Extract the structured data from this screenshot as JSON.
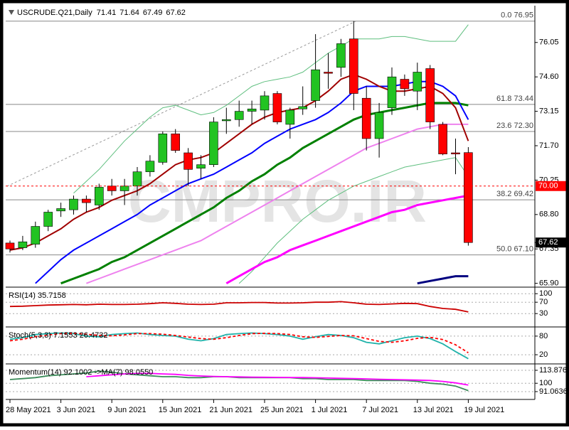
{
  "chart_data": {
    "type": "candlestick",
    "title": "USCRUDE.Q21,Daily",
    "header_values": [
      71.41,
      71.64,
      67.49,
      67.62
    ],
    "watermark": "CMPRO.IR",
    "categories": [
      "28 May 2021",
      null,
      null,
      null,
      "3 Jun 2021",
      null,
      null,
      null,
      "9 Jun 2021",
      null,
      null,
      null,
      "15 Jun 2021",
      null,
      null,
      null,
      "21 Jun 2021",
      null,
      null,
      null,
      "25 Jun 2021",
      null,
      null,
      null,
      "1 Jul 2021",
      null,
      null,
      null,
      "7 Jul 2021",
      null,
      null,
      null,
      "13 Jul 2021",
      null,
      null,
      null,
      "19 Jul 2021"
    ],
    "open": [
      67.6,
      67.4,
      67.55,
      68.3,
      68.95,
      69.0,
      69.45,
      69.2,
      70.0,
      69.8,
      70.0,
      70.6,
      71.0,
      72.2,
      71.4,
      70.75,
      70.9,
      72.75,
      72.8,
      73.15,
      73.2,
      73.9,
      72.6,
      73.25,
      73.6,
      74.8,
      75.0,
      76.2,
      73.7,
      72.0,
      73.3,
      74.5,
      74.0,
      74.95,
      72.6,
      71.4,
      71.41
    ],
    "high": [
      67.7,
      67.9,
      68.5,
      69.0,
      69.3,
      69.6,
      69.6,
      70.1,
      70.3,
      70.3,
      70.8,
      71.3,
      72.3,
      72.4,
      71.6,
      71.3,
      72.9,
      73.3,
      73.6,
      73.6,
      74.0,
      74.0,
      73.3,
      74.2,
      76.4,
      75.6,
      76.2,
      76.95,
      74.2,
      73.5,
      75.0,
      74.7,
      75.2,
      75.1,
      72.7,
      72.0,
      71.64
    ],
    "low": [
      67.2,
      67.3,
      67.4,
      68.1,
      68.7,
      68.8,
      68.9,
      69.0,
      69.6,
      69.2,
      69.6,
      70.4,
      70.9,
      71.4,
      70.0,
      70.3,
      70.8,
      72.2,
      72.5,
      72.6,
      72.8,
      72.6,
      72.0,
      73.0,
      73.3,
      74.1,
      74.6,
      73.2,
      71.5,
      71.2,
      73.0,
      73.8,
      73.2,
      72.4,
      71.3,
      70.5,
      67.49
    ],
    "close": [
      67.35,
      67.65,
      68.3,
      68.9,
      69.05,
      69.45,
      69.3,
      69.95,
      69.8,
      70.0,
      70.6,
      71.05,
      72.2,
      71.5,
      70.7,
      70.9,
      72.7,
      72.8,
      73.15,
      73.25,
      73.8,
      72.7,
      73.2,
      73.35,
      74.9,
      74.75,
      76.0,
      73.9,
      72.0,
      73.1,
      74.6,
      74.1,
      74.8,
      72.7,
      71.35,
      71.35,
      67.62
    ],
    "up_color": "#22c322",
    "down_color": "#ff0000",
    "overlays": [
      {
        "color": "#5fbf7f",
        "width": 1,
        "values": [
          null,
          null,
          null,
          null,
          null,
          69.7,
          70.2,
          70.7,
          71.3,
          71.9,
          72.4,
          72.9,
          73.3,
          73.4,
          73.2,
          73.0,
          73.1,
          73.4,
          73.8,
          74.2,
          74.4,
          74.5,
          74.6,
          74.8,
          75.2,
          75.6,
          75.9,
          76.2,
          76.2,
          76.2,
          76.3,
          76.3,
          76.2,
          76.1,
          76.1,
          76.1,
          76.8
        ]
      },
      {
        "color": "#5fbf7f",
        "width": 1,
        "values": [
          null,
          null,
          null,
          null,
          null,
          null,
          null,
          null,
          null,
          null,
          null,
          null,
          null,
          null,
          null,
          null,
          null,
          null,
          65.9,
          66.4,
          67.0,
          67.6,
          68.1,
          68.6,
          69.0,
          69.4,
          69.7,
          70.0,
          70.2,
          70.4,
          70.6,
          70.8,
          70.9,
          71.0,
          71.1,
          71.2,
          70.4
        ]
      },
      {
        "color": "#ee82ee",
        "width": 2,
        "values": [
          null,
          null,
          null,
          null,
          null,
          null,
          65.9,
          66.1,
          66.3,
          66.5,
          66.7,
          66.9,
          67.1,
          67.3,
          67.5,
          67.7,
          68.0,
          68.3,
          68.6,
          68.9,
          69.2,
          69.5,
          69.8,
          70.1,
          70.4,
          70.7,
          71.0,
          71.3,
          71.6,
          71.8,
          72.0,
          72.2,
          72.4,
          72.5,
          72.6,
          72.6,
          72.6
        ]
      },
      {
        "color": "#ff00ff",
        "width": 3,
        "values": [
          null,
          null,
          null,
          null,
          null,
          null,
          null,
          null,
          null,
          null,
          null,
          null,
          null,
          null,
          null,
          null,
          null,
          65.9,
          66.2,
          66.5,
          66.8,
          67.0,
          67.3,
          67.5,
          67.7,
          67.9,
          68.1,
          68.3,
          68.5,
          68.7,
          68.9,
          69.0,
          69.2,
          69.3,
          69.4,
          69.5,
          69.6
        ]
      },
      {
        "color": "#008000",
        "width": 3,
        "values": [
          null,
          null,
          null,
          null,
          65.9,
          66.1,
          66.3,
          66.5,
          66.8,
          67.0,
          67.3,
          67.6,
          67.9,
          68.2,
          68.5,
          68.8,
          69.1,
          69.5,
          69.8,
          70.2,
          70.5,
          70.9,
          71.2,
          71.6,
          71.9,
          72.2,
          72.5,
          72.8,
          73.0,
          73.1,
          73.2,
          73.3,
          73.4,
          73.5,
          73.5,
          73.5,
          73.4
        ]
      },
      {
        "color": "#0000ff",
        "width": 2,
        "values": [
          null,
          null,
          65.9,
          66.4,
          66.9,
          67.3,
          67.6,
          67.9,
          68.2,
          68.5,
          68.8,
          69.2,
          69.5,
          69.8,
          70.1,
          70.3,
          70.5,
          70.8,
          71.1,
          71.4,
          71.8,
          72.1,
          72.4,
          72.6,
          72.8,
          73.1,
          73.5,
          74.0,
          74.2,
          74.2,
          74.2,
          74.3,
          74.4,
          74.4,
          74.2,
          73.8,
          72.8
        ]
      },
      {
        "color": "#a00000",
        "width": 2,
        "values": [
          67.3,
          67.4,
          67.6,
          67.9,
          68.2,
          68.6,
          68.9,
          69.1,
          69.4,
          69.6,
          69.8,
          70.1,
          70.5,
          70.9,
          71.1,
          71.2,
          71.4,
          71.8,
          72.2,
          72.6,
          72.9,
          73.1,
          73.2,
          73.3,
          73.6,
          74.0,
          74.5,
          74.7,
          74.5,
          74.2,
          74.0,
          74.0,
          74.1,
          74.2,
          73.9,
          73.3,
          71.9
        ]
      },
      {
        "color": "#000080",
        "width": 3,
        "values": [
          null,
          null,
          null,
          null,
          null,
          null,
          null,
          null,
          null,
          null,
          null,
          null,
          null,
          null,
          null,
          null,
          null,
          null,
          null,
          null,
          null,
          null,
          null,
          null,
          null,
          null,
          null,
          null,
          null,
          null,
          null,
          null,
          65.9,
          66.0,
          66.1,
          66.2,
          66.2
        ]
      }
    ],
    "levels": [
      {
        "label": "0.0 76.95",
        "value": 76.95
      },
      {
        "label": "61.8 73.44",
        "value": 73.44
      },
      {
        "label": "23.6 72.30",
        "value": 72.3
      },
      {
        "label": "38.2 69.42",
        "value": 69.42
      },
      {
        "label": "50.0 67.10",
        "value": 67.1
      }
    ],
    "price_markers": [
      {
        "value": 70,
        "label": "70.00",
        "color": "#ff0000",
        "dashed": true
      },
      {
        "value": 67.62,
        "label": "67.62",
        "color": "#000000",
        "dashed": false
      }
    ],
    "ylim": [
      65.8,
      77.6
    ],
    "yticks": [
      76.05,
      {
        "value": 74.6,
        "label": "74.60"
      },
      73.15,
      {
        "value": 71.7,
        "label": "71.70"
      },
      70.25,
      {
        "value": 68.8,
        "label": "68.80"
      },
      67.35,
      {
        "value": 65.9,
        "label": "65.90"
      }
    ],
    "indicators": [
      {
        "title": "RSI(14) 35.7158",
        "ylim": [
          -12,
          118
        ],
        "yticks": [
          100,
          70,
          30
        ],
        "series": [
          {
            "color": "#cc0000",
            "dash": false,
            "values": [
              55,
              56,
              58,
              60,
              61,
              62,
              61,
              63,
              62,
              62,
              63,
              65,
              68,
              66,
              63,
              62,
              63,
              68,
              68,
              69,
              69,
              67,
              67,
              68,
              70,
              70,
              72,
              68,
              63,
              62,
              64,
              66,
              65,
              55,
              48,
              45,
              35.7158
            ]
          }
        ]
      },
      {
        "title": "Stoch(5,3,3) 7.1553 26.4732",
        "ylim": [
          -5,
          105
        ],
        "yticks": [
          80,
          20
        ],
        "series": [
          {
            "color": "#20b2aa",
            "dash": false,
            "values": [
              70,
              75,
              85,
              88,
              90,
              88,
              80,
              78,
              85,
              88,
              90,
              85,
              82,
              80,
              70,
              65,
              72,
              85,
              88,
              90,
              88,
              85,
              80,
              70,
              78,
              85,
              82,
              75,
              60,
              55,
              65,
              75,
              80,
              72,
              55,
              30,
              7.1553
            ]
          },
          {
            "color": "#ff0000",
            "dash": true,
            "values": [
              65,
              70,
              78,
              84,
              88,
              89,
              86,
              82,
              81,
              84,
              88,
              88,
              86,
              82,
              77,
              72,
              70,
              75,
              82,
              88,
              89,
              88,
              85,
              78,
              76,
              79,
              82,
              81,
              72,
              63,
              60,
              65,
              73,
              76,
              69,
              52,
              26.4732
            ]
          }
        ]
      },
      {
        "title": "Momentum(14) 92.1002 ->MA(7) 98.0550",
        "ylim": [
          84.2,
          119.2
        ],
        "yticks": [
          113.876,
          100,
          91.0636
        ],
        "series": [
          {
            "color": "#3c8c5a",
            "dash": false,
            "values": [
              104,
              105,
              106,
              108,
              109,
              110,
              111,
              113,
              112,
              110,
              109,
              108,
              107,
              107,
              106,
              106,
              107,
              107,
              106,
              106,
              106,
              106,
              106,
              105,
              105,
              104,
              104,
              104,
              103,
              103,
              103,
              103,
              102,
              100,
              99,
              97,
              92.1002
            ]
          },
          {
            "color": "#ff00ff",
            "dash": false,
            "values": [
              null,
              null,
              null,
              null,
              null,
              null,
              107,
              108,
              109,
              110,
              110.5,
              110.6,
              110,
              109.5,
              108.5,
              107.8,
              107.3,
              107,
              106.8,
              106.6,
              106.4,
              106.3,
              106.2,
              106.1,
              105.9,
              105.6,
              105.3,
              105,
              104.7,
              104.3,
              104,
              103.7,
              103.4,
              103,
              102,
              100.4,
              98.055
            ]
          }
        ]
      }
    ]
  }
}
